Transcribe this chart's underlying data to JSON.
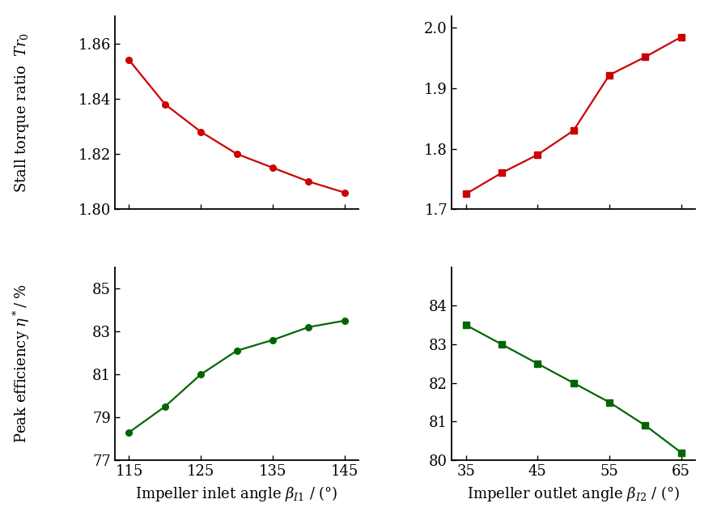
{
  "top_left": {
    "x": [
      115,
      120,
      125,
      130,
      135,
      140,
      145
    ],
    "y": [
      1.854,
      1.838,
      1.828,
      1.82,
      1.815,
      1.81,
      1.806
    ],
    "color": "#cc0000",
    "marker": "o",
    "xlim": [
      113,
      147
    ],
    "ylim": [
      1.8,
      1.87
    ],
    "yticks": [
      1.8,
      1.82,
      1.84,
      1.86
    ],
    "xticks": [
      115,
      125,
      135,
      145
    ]
  },
  "top_right": {
    "x": [
      35,
      40,
      45,
      50,
      55,
      60,
      65
    ],
    "y": [
      1.725,
      1.76,
      1.79,
      1.83,
      1.922,
      1.952,
      1.985
    ],
    "color": "#cc0000",
    "marker": "s",
    "xlim": [
      33,
      67
    ],
    "ylim": [
      1.7,
      2.02
    ],
    "yticks": [
      1.7,
      1.8,
      1.9,
      2.0
    ],
    "xticks": [
      35,
      45,
      55,
      65
    ]
  },
  "bottom_left": {
    "x": [
      115,
      120,
      125,
      130,
      135,
      140,
      145
    ],
    "y": [
      78.3,
      79.5,
      81.0,
      82.1,
      82.6,
      83.2,
      83.5
    ],
    "color": "#006600",
    "marker": "o",
    "xlim": [
      113,
      147
    ],
    "ylim": [
      77,
      86
    ],
    "yticks": [
      77,
      79,
      81,
      83,
      85
    ],
    "xticks": [
      115,
      125,
      135,
      145
    ]
  },
  "bottom_right": {
    "x": [
      35,
      40,
      45,
      50,
      55,
      60,
      65
    ],
    "y": [
      83.5,
      83.0,
      82.5,
      82.0,
      81.5,
      80.9,
      80.2
    ],
    "color": "#006600",
    "marker": "s",
    "xlim": [
      33,
      67
    ],
    "ylim": [
      80,
      85
    ],
    "yticks": [
      80,
      81,
      82,
      83,
      84
    ],
    "xticks": [
      35,
      45,
      55,
      65
    ]
  },
  "ylabel_top": "Stall torque ratio  $Tr_0$",
  "ylabel_bottom": "Peak efficiency $\\eta^*$/ %",
  "xlabel_left": "Impeller inlet angle $\\beta_{I1}$ / (°)",
  "xlabel_right": "Impeller outlet angle $\\beta_{I2}$ / (°)",
  "bg_color": "#ffffff",
  "font_family": "serif",
  "font_size": 13,
  "tick_labelsize": 13,
  "label_fontsize": 13,
  "linewidth": 1.6,
  "markersize": 5.5
}
